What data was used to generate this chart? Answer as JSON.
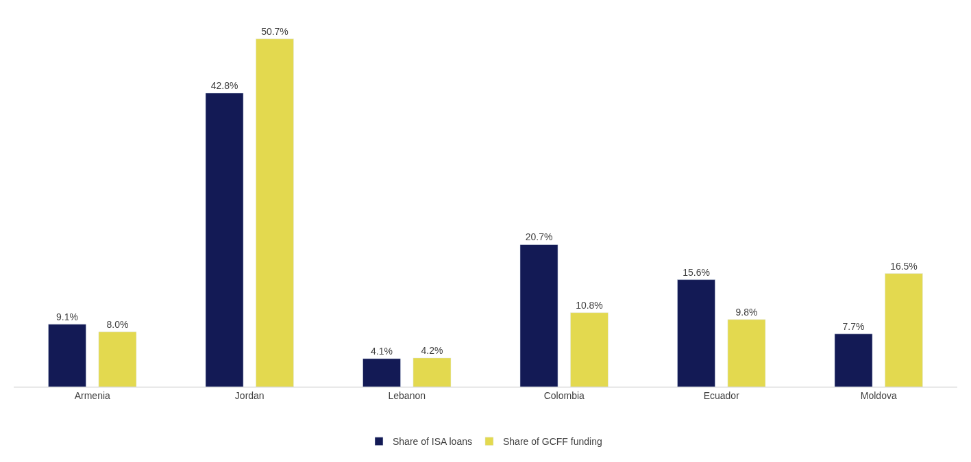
{
  "chart_data": {
    "type": "bar",
    "categories": [
      "Armenia",
      "Jordan",
      "Lebanon",
      "Colombia",
      "Ecuador",
      "Moldova"
    ],
    "series": [
      {
        "name": "Share of ISA loans",
        "color": "#131a55",
        "values": [
          9.1,
          42.8,
          4.1,
          20.7,
          15.6,
          7.7
        ],
        "value_labels": [
          "9.1%",
          "42.8%",
          "4.1%",
          "20.7%",
          "15.6%",
          "7.7%"
        ]
      },
      {
        "name": "Share of GCFF funding",
        "color": "#e3d94f",
        "values": [
          8.0,
          50.7,
          4.2,
          10.8,
          9.8,
          16.5
        ],
        "value_labels": [
          "8.0%",
          "50.7%",
          "4.2%",
          "10.8%",
          "9.8%",
          "16.5%"
        ]
      }
    ],
    "legend": "bottom"
  }
}
